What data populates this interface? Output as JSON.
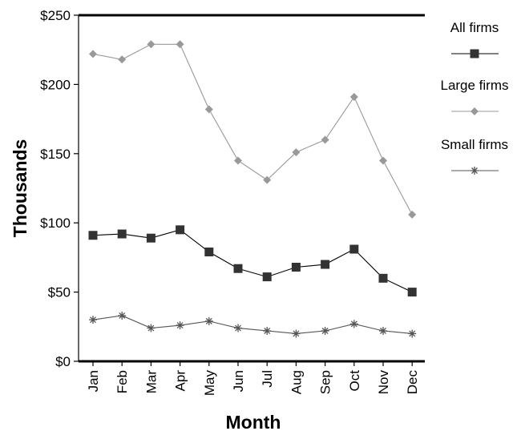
{
  "chart_data": {
    "type": "line",
    "title": "",
    "xlabel": "Month",
    "ylabel": "Thousands",
    "categories": [
      "Jan",
      "Feb",
      "Mar",
      "Apr",
      "May",
      "Jun",
      "Jul",
      "Aug",
      "Sep",
      "Oct",
      "Nov",
      "Dec"
    ],
    "ylim": [
      0,
      250
    ],
    "y_ticks": [
      0,
      50,
      100,
      150,
      200,
      250
    ],
    "y_tick_labels": [
      "$0",
      "$50",
      "$100",
      "$150",
      "$200",
      "$250"
    ],
    "grid": false,
    "legend_position": "right",
    "series": [
      {
        "name": "All firms",
        "marker": "square",
        "color": "#333333",
        "line_color": "#000000",
        "values": [
          91,
          92,
          89,
          95,
          79,
          67,
          61,
          68,
          70,
          81,
          60,
          50
        ]
      },
      {
        "name": "Large firms",
        "marker": "diamond",
        "color": "#999999",
        "line_color": "#999999",
        "values": [
          222,
          218,
          229,
          229,
          182,
          145,
          131,
          151,
          160,
          191,
          145,
          106
        ]
      },
      {
        "name": "Small firms",
        "marker": "asterisk",
        "color": "#555555",
        "line_color": "#555555",
        "values": [
          30,
          33,
          24,
          26,
          29,
          24,
          22,
          20,
          22,
          27,
          22,
          20
        ]
      }
    ]
  }
}
